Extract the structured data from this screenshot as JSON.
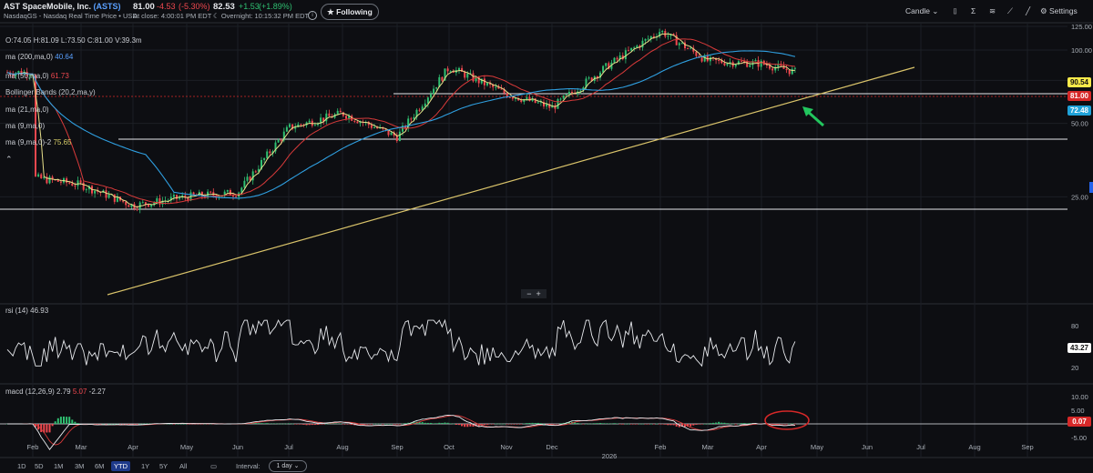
{
  "header": {
    "company": "AST SpaceMobile, Inc.",
    "ticker": "(ASTS)",
    "exchange": "NasdaqGS - Nasdaq Real Time Price • USD",
    "price": "81.00",
    "change": "-4.53",
    "change_pct": "(-5.30%)",
    "close_label": "At close: 4:00:01 PM EDT",
    "overnight_price": "82.53",
    "overnight_change": "+1.53",
    "overnight_pct": "(+1.89%)",
    "overnight_label": "Overnight: 10:15:32 PM EDT",
    "follow_label": "★ Following",
    "chart_type": "Candle",
    "settings_label": "Settings"
  },
  "legend": {
    "ohlc": "O:74.05  H:81.09  L:73.50  C:81.00  V:39.3m",
    "ma200": "ma (200,ma,0)",
    "ma200_val": "40.64",
    "ma50": "ma (50,ma,0)",
    "ma50_val": "61.73",
    "bb": "Bollinger Bands (20,2,ma,y)",
    "ma21": "ma (21,ma,0)",
    "ma9": "ma (9,ma,0)",
    "ma9b": "ma (9,ma,0)-2",
    "ma9b_val": "75.65"
  },
  "price_axis": {
    "ticks": [
      "125.00",
      "100.00",
      "75.00",
      "50.00",
      "25.00"
    ]
  },
  "price_tags": {
    "high": "90.54",
    "last": "81.00",
    "ma": "72.48"
  },
  "rsi": {
    "label": "rsi (14)",
    "value": "46.93",
    "ticks": [
      "80",
      "20"
    ],
    "tag": "43.27"
  },
  "macd": {
    "label": "macd (12,26,9)",
    "v1": "2.79",
    "v2": "5.07",
    "v3": "-2.27",
    "ticks": [
      "10.00",
      "5.00",
      "-5.00"
    ],
    "tag": "0.07"
  },
  "xaxis": {
    "months": [
      "Feb",
      "Mar",
      "Apr",
      "May",
      "Jun",
      "Jul",
      "Aug",
      "Sep",
      "Oct",
      "Nov",
      "Dec",
      "Feb",
      "Mar",
      "Apr",
      "May",
      "Jun",
      "Jul",
      "Aug",
      "Sep"
    ],
    "year": "2026"
  },
  "timeframes": [
    "1D",
    "5D",
    "1M",
    "3M",
    "6M",
    "YTD",
    "1Y",
    "5Y",
    "All"
  ],
  "selected_timeframe": "YTD",
  "interval_label": "Interval:",
  "interval_value": "1 day ⌄",
  "colors": {
    "up": "#2fbf71",
    "down": "#f0484f",
    "ma_blue": "#2f9fe0",
    "ma_red": "#d83a3a",
    "ma_yellow": "#e8e08a",
    "trend": "#d9c36a",
    "arrow": "#22c55e"
  },
  "chart_data": {
    "type": "line",
    "title": "",
    "ylabel": "",
    "ylim": [
      10,
      135
    ],
    "x": [
      "Feb",
      "Mar",
      "Apr",
      "May",
      "Jun",
      "Jul",
      "Aug",
      "Sep",
      "Oct",
      "Nov",
      "Dec",
      "Jan",
      "Feb",
      "Mar",
      "Apr",
      "May"
    ],
    "series": [
      {
        "values": [
          30,
          28,
          23,
          25,
          26,
          48,
          55,
          44,
          85,
          66,
          58,
          85,
          120,
          90,
          88,
          81
        ]
      }
    ]
  }
}
